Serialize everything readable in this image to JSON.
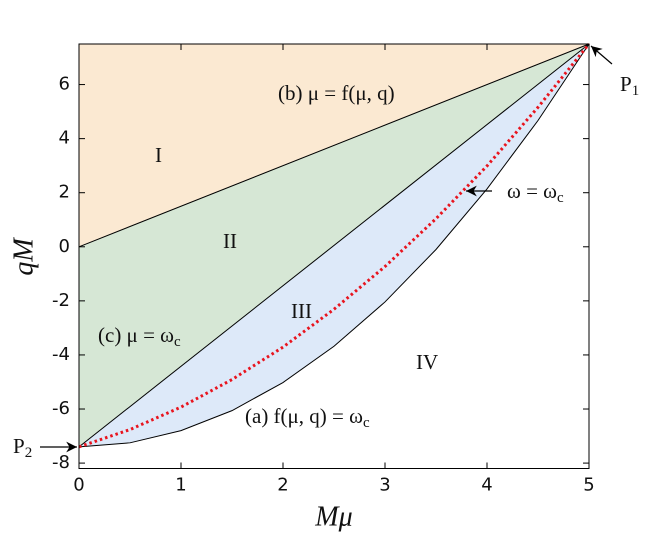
{
  "chart_data": {
    "type": "region",
    "x_label": "Mμ",
    "y_label": "qM",
    "xlim": [
      0,
      5
    ],
    "ylim": [
      -8.2,
      7.5
    ],
    "xticks": [
      0,
      1,
      2,
      3,
      4,
      5
    ],
    "yticks": [
      -8,
      -6,
      -4,
      -2,
      0,
      2,
      4,
      6
    ],
    "region_colors": [
      "#fbe9d2",
      "#d6e7d5",
      "#dde9f9"
    ],
    "series": [
      {
        "color": "#000000",
        "style": "solid",
        "x": [
          0,
          5
        ],
        "values": [
          0,
          7.5
        ]
      },
      {
        "color": "#000000",
        "style": "solid",
        "x": [
          0,
          5
        ],
        "values": [
          -7.4,
          7.5
        ]
      },
      {
        "color": "#000000",
        "style": "solid",
        "x": [
          0,
          0.5,
          1,
          1.5,
          2,
          2.5,
          3,
          3.5,
          4,
          4.5,
          5
        ],
        "values": [
          -7.4,
          -7.25,
          -6.8,
          -6.06,
          -5.02,
          -3.68,
          -2.04,
          -0.1,
          2.14,
          4.67,
          7.5
        ]
      },
      {
        "color": "#e8141e",
        "style": "dotted",
        "x": [
          0,
          0.5,
          1,
          1.5,
          2,
          2.5,
          3,
          3.5,
          4,
          4.5,
          5
        ],
        "values": [
          -7.4,
          -6.76,
          -5.93,
          -4.91,
          -3.71,
          -2.31,
          -0.73,
          1.04,
          2.99,
          5.16,
          7.5
        ]
      }
    ],
    "annotations": [
      {
        "text": "I"
      },
      {
        "text": "II"
      },
      {
        "text": "III"
      },
      {
        "text": "IV"
      },
      {
        "text": "(b) μ = f(μ, q)"
      },
      {
        "text": "(c) μ = ω",
        "sub": "c"
      },
      {
        "text": "(a) f(μ, q) = ω",
        "sub": "c"
      },
      {
        "text": "ω = ω",
        "sub": "c"
      },
      {
        "text": "P",
        "sub": "1"
      },
      {
        "text": "P",
        "sub": "2"
      }
    ]
  }
}
